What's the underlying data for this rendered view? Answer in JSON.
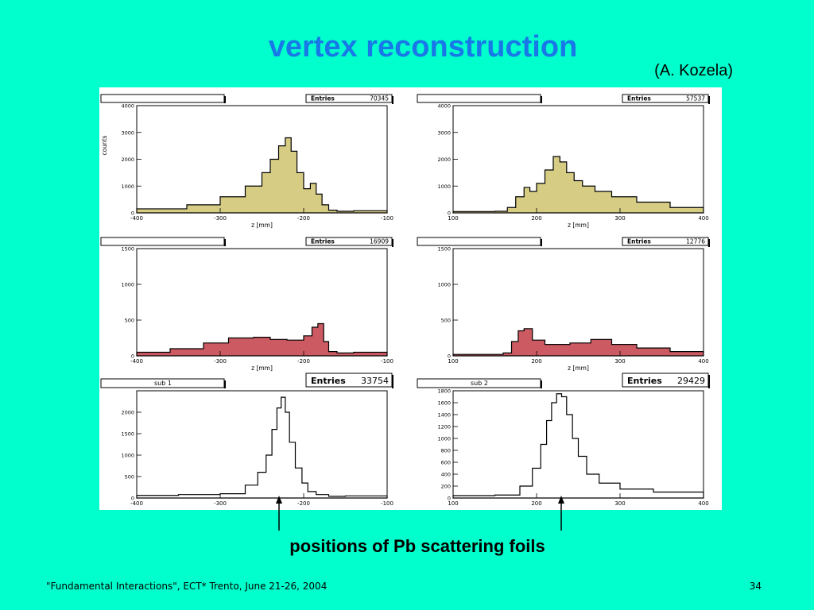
{
  "slide": {
    "title": "vertex reconstruction",
    "author": "(A. Kozela)",
    "caption": "positions of Pb scattering foils",
    "footer": "\"Fundamental Interactions\", ECT* Trento, June 21-26, 2004",
    "page_number": "34"
  },
  "colors": {
    "background": "#00ffcc",
    "title": "#1878e8",
    "fill_top": "#d6cc84",
    "fill_middle": "#cc5a62",
    "line": "#000000"
  },
  "chart_data": [
    {
      "type": "histogram",
      "title": "",
      "stats_label": "Entries",
      "entries": "70345",
      "xlabel": "z [mm]",
      "ylabel": "counts",
      "xlim": [
        -400,
        -100
      ],
      "ylim": [
        0,
        4000
      ],
      "xticks": [
        "-400",
        "-300",
        "-200",
        "-100"
      ],
      "yticks": [
        "0",
        "1000",
        "2000",
        "3000",
        "4000"
      ],
      "fill": "fill_top",
      "x": [
        -400,
        -340,
        -300,
        -270,
        -250,
        -240,
        -230,
        -222,
        -215,
        -208,
        -200,
        -192,
        -185,
        -178,
        -170,
        -160,
        -140,
        -100
      ],
      "y": [
        150,
        300,
        600,
        1000,
        1500,
        2000,
        2500,
        2800,
        2300,
        1500,
        900,
        1100,
        700,
        300,
        100,
        60,
        80,
        40
      ]
    },
    {
      "type": "histogram",
      "title": "",
      "stats_label": "Entries",
      "entries": "57537",
      "xlabel": "z [mm]",
      "ylabel": "",
      "xlim": [
        100,
        400
      ],
      "ylim": [
        0,
        4000
      ],
      "xticks": [
        "100",
        "200",
        "300",
        "400"
      ],
      "yticks": [
        "0",
        "1000",
        "2000",
        "3000",
        "4000"
      ],
      "fill": "fill_top",
      "x": [
        100,
        150,
        165,
        175,
        185,
        192,
        200,
        210,
        220,
        228,
        236,
        245,
        255,
        270,
        290,
        320,
        360,
        400
      ],
      "y": [
        50,
        60,
        200,
        600,
        950,
        800,
        1100,
        1600,
        2100,
        1900,
        1500,
        1200,
        1000,
        800,
        600,
        400,
        200,
        80
      ]
    },
    {
      "type": "histogram",
      "title": "",
      "stats_label": "Entries",
      "entries": "16909",
      "xlabel": "z [mm]",
      "ylabel": "",
      "xlim": [
        -400,
        -100
      ],
      "ylim": [
        0,
        1500
      ],
      "xticks": [
        "-400",
        "-300",
        "-200",
        "-100"
      ],
      "yticks": [
        "0",
        "500",
        "1000",
        "1500"
      ],
      "fill": "fill_middle",
      "x": [
        -400,
        -360,
        -320,
        -290,
        -260,
        -240,
        -220,
        -200,
        -190,
        -183,
        -176,
        -170,
        -160,
        -140,
        -100
      ],
      "y": [
        50,
        100,
        180,
        250,
        260,
        230,
        220,
        280,
        400,
        450,
        200,
        60,
        40,
        50,
        30
      ],
      "annotations": []
    },
    {
      "type": "histogram",
      "title": "",
      "stats_label": "Entries",
      "entries": "12776",
      "xlabel": "z [mm]",
      "ylabel": "",
      "xlim": [
        100,
        400
      ],
      "ylim": [
        0,
        1500
      ],
      "xticks": [
        "100",
        "200",
        "300",
        "400"
      ],
      "yticks": [
        "0",
        "500",
        "1000",
        "1500"
      ],
      "fill": "fill_middle",
      "x": [
        100,
        160,
        170,
        178,
        185,
        195,
        210,
        240,
        265,
        290,
        320,
        360,
        400
      ],
      "y": [
        20,
        40,
        200,
        350,
        380,
        220,
        160,
        180,
        230,
        160,
        110,
        60,
        30
      ]
    },
    {
      "type": "histogram",
      "title": "sub 1",
      "stats_label": "Entries",
      "entries": "33754",
      "xlabel": "",
      "ylabel": "",
      "xlim": [
        -400,
        -100
      ],
      "ylim": [
        0,
        2500
      ],
      "xticks": [
        "-400",
        "-300",
        "-200",
        "-100"
      ],
      "yticks": [
        "0",
        "500",
        "1000",
        "1500",
        "2000"
      ],
      "fill": "none",
      "x": [
        -400,
        -350,
        -300,
        -270,
        -255,
        -245,
        -238,
        -232,
        -227,
        -222,
        -217,
        -210,
        -202,
        -195,
        -185,
        -170,
        -150,
        -100
      ],
      "y": [
        60,
        80,
        100,
        300,
        600,
        1000,
        1600,
        2100,
        2350,
        2000,
        1300,
        700,
        350,
        150,
        80,
        40,
        50,
        30
      ]
    },
    {
      "type": "histogram",
      "title": "sub 2",
      "stats_label": "Entries",
      "entries": "29429",
      "xlabel": "",
      "ylabel": "",
      "xlim": [
        100,
        400
      ],
      "ylim": [
        0,
        1800
      ],
      "xticks": [
        "100",
        "200",
        "300",
        "400"
      ],
      "yticks": [
        "0",
        "200",
        "400",
        "600",
        "800",
        "1000",
        "1200",
        "1400",
        "1600",
        "1800"
      ],
      "fill": "none",
      "x": [
        100,
        150,
        180,
        195,
        205,
        212,
        218,
        224,
        230,
        236,
        243,
        250,
        260,
        275,
        300,
        340,
        400
      ],
      "y": [
        40,
        50,
        200,
        500,
        900,
        1300,
        1600,
        1750,
        1700,
        1400,
        1000,
        700,
        400,
        250,
        150,
        100,
        60
      ]
    }
  ]
}
